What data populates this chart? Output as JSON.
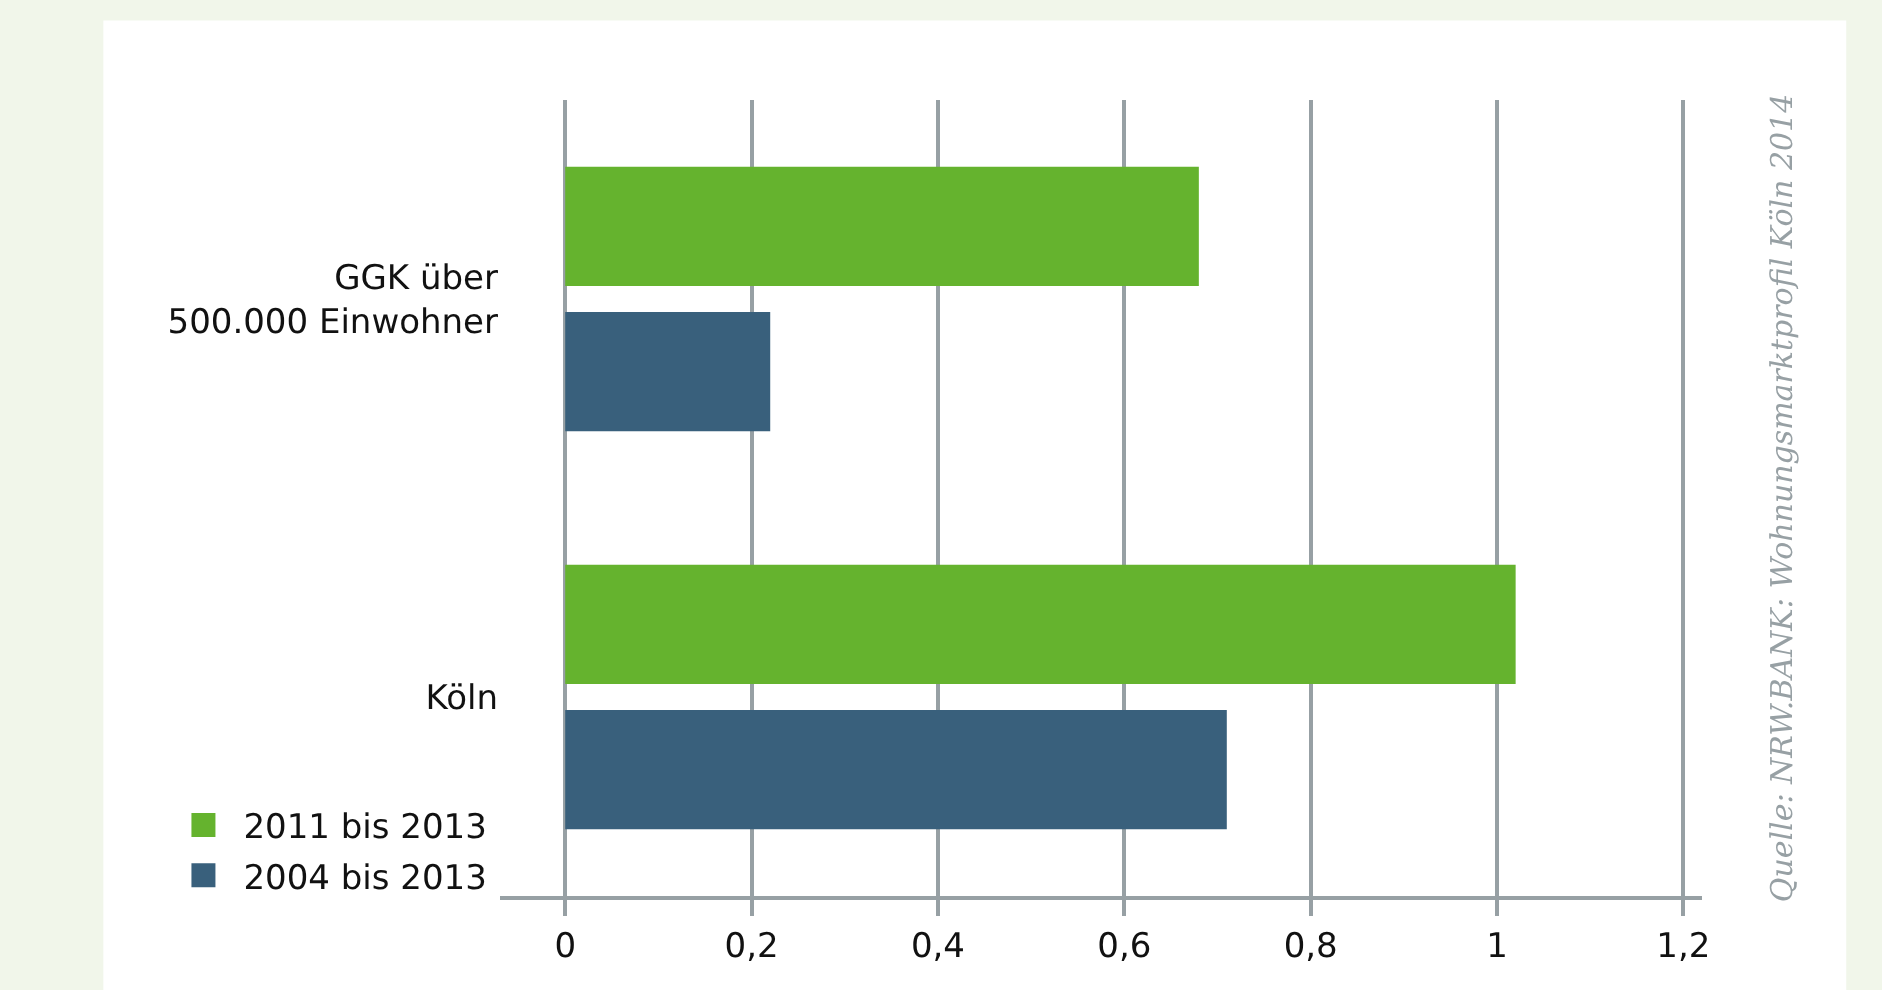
{
  "chart_data": {
    "type": "bar",
    "orientation": "horizontal",
    "categories": [
      "GGK über\n500.000 Einwohner",
      "Köln"
    ],
    "series": [
      {
        "name": "2011 bis 2013",
        "color": "#65b32e",
        "values": [
          0.68,
          1.02
        ]
      },
      {
        "name": "2004 bis 2013",
        "color": "#39607c",
        "values": [
          0.22,
          0.71
        ]
      }
    ],
    "xlim": [
      -0.07,
      1.22
    ],
    "xticks": [
      {
        "value": 0,
        "label": "0"
      },
      {
        "value": 0.2,
        "label": "0,2"
      },
      {
        "value": 0.4,
        "label": "0,4"
      },
      {
        "value": 0.6,
        "label": "0,6"
      },
      {
        "value": 0.8,
        "label": "0,8"
      },
      {
        "value": 1,
        "label": "1"
      },
      {
        "value": 1.2,
        "label": "1,2"
      }
    ],
    "grid": "x",
    "legend": "bottom left",
    "annotations": [
      "Quelle: NRW.BANK: Wohnungsmarktprofil Köln 2014"
    ]
  }
}
